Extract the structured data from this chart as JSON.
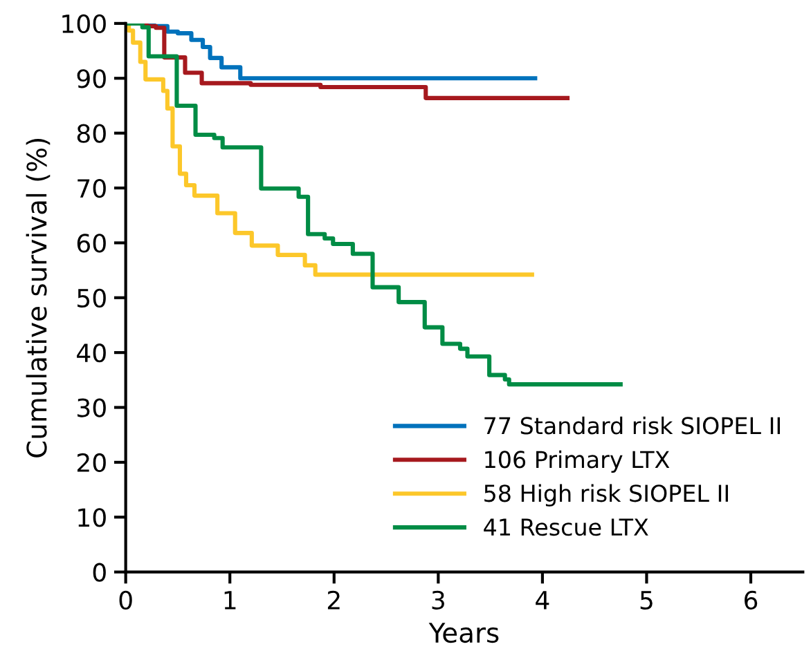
{
  "chart_data": {
    "type": "step",
    "xlabel": "Years",
    "ylabel": "Cumulative survival (%)",
    "xlim": [
      0,
      6.5
    ],
    "xticks": [
      0,
      1,
      2,
      3,
      4,
      5,
      6
    ],
    "ylim": [
      0,
      100
    ],
    "yticks": [
      0,
      10,
      20,
      30,
      40,
      50,
      60,
      70,
      80,
      90,
      100
    ],
    "grid": false,
    "legend": "bottom right",
    "line_style": "solid",
    "marker": "none",
    "series": [
      {
        "name": "77 Standard risk SIOPEL II",
        "color": "#0072bc",
        "x": [
          0,
          0.27,
          0.4,
          0.5,
          0.63,
          0.74,
          0.81,
          0.92,
          1.1,
          3.93
        ],
        "values": [
          100,
          99.5,
          98.5,
          98.2,
          97,
          95.7,
          93.7,
          92,
          90,
          90
        ]
      },
      {
        "name": "106 Primary LTX",
        "color": "#a6191e",
        "x": [
          0,
          0.2,
          0.29,
          0.37,
          0.57,
          0.73,
          1.2,
          1.87,
          2.88,
          4.24
        ],
        "values": [
          100,
          99.5,
          99.2,
          93.8,
          91,
          89.1,
          88.8,
          88.4,
          86.4,
          86.4
        ]
      },
      {
        "name": "58 High risk SIOPEL II",
        "color": "#fcc72a",
        "x": [
          0,
          0.03,
          0.07,
          0.14,
          0.19,
          0.36,
          0.4,
          0.45,
          0.52,
          0.58,
          0.66,
          0.88,
          1.05,
          1.21,
          1.46,
          1.72,
          1.82,
          3.9
        ],
        "values": [
          100,
          98.7,
          96.5,
          93,
          89.8,
          87.7,
          84.5,
          77.6,
          72.6,
          70.5,
          68.6,
          65.4,
          61.8,
          59.5,
          57.8,
          55.9,
          54.2,
          54.2
        ]
      },
      {
        "name": "41 Rescue LTX",
        "color": "#008c45",
        "x": [
          0,
          0.16,
          0.22,
          0.49,
          0.67,
          0.85,
          0.93,
          1.3,
          1.66,
          1.75,
          1.91,
          1.99,
          2.18,
          2.37,
          2.62,
          2.87,
          3.04,
          3.21,
          3.28,
          3.49,
          3.64,
          3.68,
          4.75
        ],
        "values": [
          100,
          99.3,
          94,
          85,
          79.7,
          79.1,
          77.4,
          69.9,
          68.4,
          61.6,
          60.8,
          59.8,
          58,
          51.9,
          49.2,
          44.6,
          41.6,
          40.7,
          39.3,
          35.9,
          35.1,
          34.2,
          34.2
        ]
      }
    ]
  }
}
